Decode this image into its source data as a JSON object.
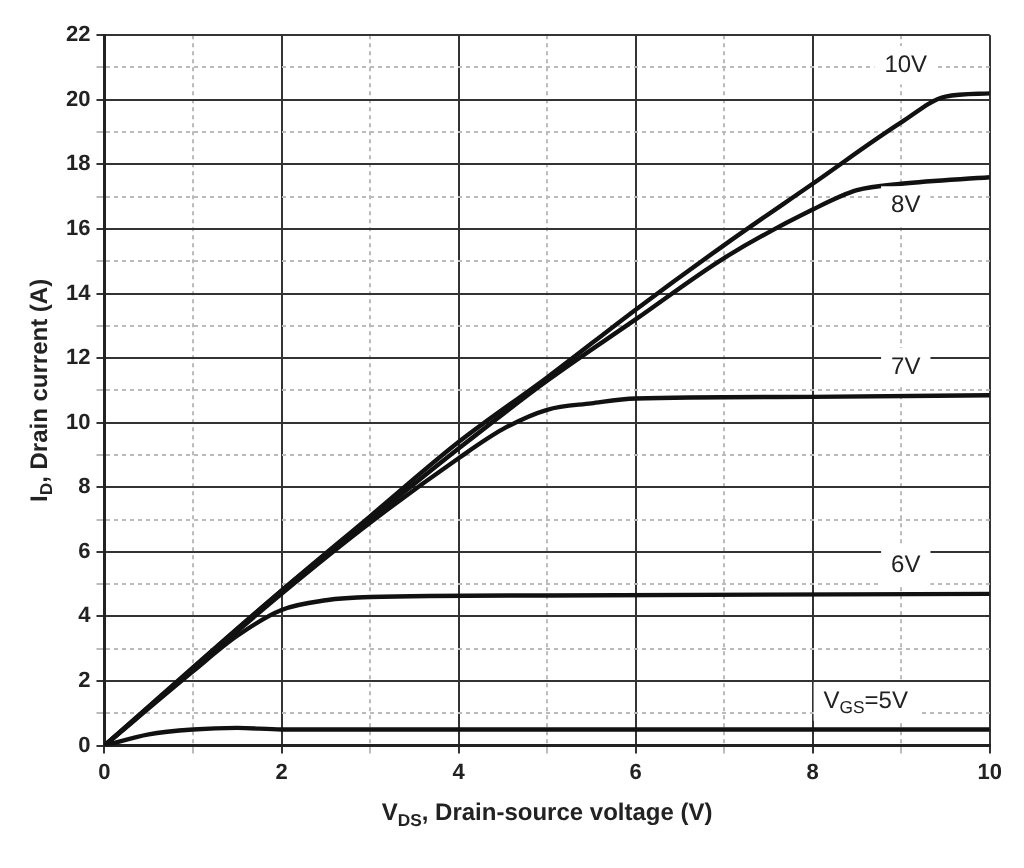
{
  "chart_data": {
    "type": "line",
    "xlabel": "V$_{DS}$, Drain-source voltage (V)",
    "ylabel": "I$_{D}$, Drain current (A)",
    "xlim": [
      0,
      10
    ],
    "ylim": [
      0,
      22
    ],
    "xticks": [
      0,
      {
        "value": 1,
        "label": null
      },
      2,
      {
        "value": 3,
        "label": null
      },
      4,
      {
        "value": 5,
        "label": null
      },
      6,
      {
        "value": 7,
        "label": null
      },
      8,
      {
        "value": 9,
        "label": null
      },
      10
    ],
    "yticks": [
      0,
      {
        "value": 1,
        "label": null
      },
      2,
      {
        "value": 3,
        "label": null
      },
      4,
      {
        "value": 5,
        "label": null
      },
      6,
      {
        "value": 7,
        "label": null
      },
      8,
      {
        "value": 9,
        "label": null
      },
      10,
      {
        "value": 11,
        "label": null
      },
      12,
      {
        "value": 13,
        "label": null
      },
      14,
      {
        "value": 15,
        "label": null
      },
      16,
      {
        "value": 17,
        "label": null
      },
      18,
      {
        "value": 19,
        "label": null
      },
      20,
      {
        "value": 21,
        "label": null
      },
      22
    ],
    "grid": true,
    "legend": false,
    "marker": "none",
    "line_style": "solid",
    "series": [
      {
        "name": "10V",
        "color": "#111111",
        "x": [
          0,
          1,
          2,
          3,
          4,
          5,
          6,
          7,
          8,
          9,
          9.5,
          10
        ],
        "values": [
          0,
          2.4,
          4.8,
          7.1,
          9.4,
          11.4,
          13.5,
          15.5,
          17.4,
          19.3,
          20.1,
          20.2
        ]
      },
      {
        "name": "8V",
        "color": "#111111",
        "x": [
          0,
          2,
          3,
          4,
          5,
          6,
          7,
          8,
          8.5,
          9,
          10
        ],
        "values": [
          0,
          4.8,
          7.0,
          9.2,
          11.3,
          13.2,
          15.1,
          16.6,
          17.2,
          17.4,
          17.6
        ]
      },
      {
        "name": "7V",
        "color": "#111111",
        "x": [
          0,
          2,
          3,
          4,
          4.5,
          5,
          5.5,
          6,
          8,
          10
        ],
        "values": [
          0,
          4.7,
          6.9,
          8.9,
          9.8,
          10.4,
          10.6,
          10.75,
          10.8,
          10.85
        ]
      },
      {
        "name": "6V",
        "color": "#111111",
        "x": [
          0,
          1,
          1.5,
          2,
          2.5,
          3,
          5,
          10
        ],
        "values": [
          0,
          2.3,
          3.4,
          4.2,
          4.5,
          4.6,
          4.65,
          4.7
        ]
      },
      {
        "name": "V$_{GS}$=5V",
        "color": "#111111",
        "x": [
          0,
          0.5,
          1,
          1.5,
          2,
          10
        ],
        "values": [
          0,
          0.35,
          0.5,
          0.55,
          0.5,
          0.5
        ]
      }
    ]
  }
}
